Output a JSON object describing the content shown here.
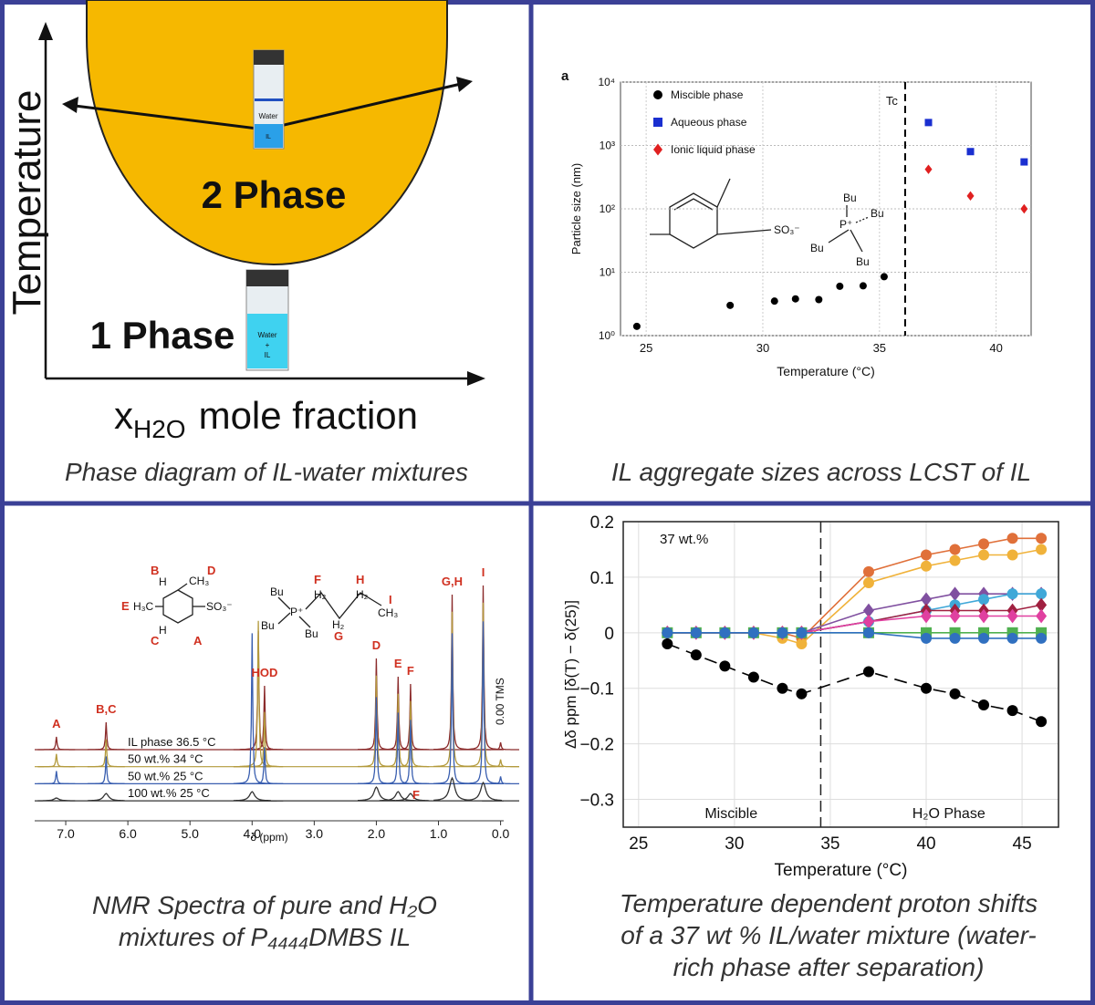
{
  "phase_diagram": {
    "y_label": "Temperature",
    "x_label": {
      "symbol": "x",
      "subscript": "H2O",
      "text": "mole fraction"
    },
    "regions": [
      "2 Phase",
      "1 Phase"
    ],
    "vial_labels": [
      "Water",
      "IL",
      "Water",
      "+",
      "IL"
    ],
    "caption": [
      "Phase diagram of IL-water mixtures"
    ]
  },
  "chart_data": [
    {
      "type": "scatter",
      "panel_label": "a",
      "x_label": "Temperature (°C)",
      "y_label": "Particle size (nm)",
      "log_y": true,
      "grid": true,
      "xlim": [
        23.9,
        41.5
      ],
      "xticks": [
        25,
        30,
        35,
        40
      ],
      "ylim": [
        1,
        10000
      ],
      "yticks": [
        {
          "value": 1,
          "label": "10⁰"
        },
        {
          "value": 10,
          "label": "10¹"
        },
        {
          "value": 100,
          "label": "10²"
        },
        {
          "value": 1000,
          "label": "10³"
        },
        {
          "value": 10000,
          "label": "10⁴"
        }
      ],
      "vline": 36.1,
      "vline_label": "Tc",
      "structure_labels": [
        "SO₃⁻",
        "Bu",
        "Bu",
        "P⁺",
        "Bu",
        "Bu"
      ],
      "series": [
        {
          "name": "Miscible phase",
          "color": "#000000",
          "marker": "circle",
          "x": [
            24.6,
            28.6,
            30.5,
            31.4,
            32.4,
            33.3,
            34.3,
            35.2
          ],
          "values": [
            1.4,
            3.0,
            3.5,
            3.8,
            3.7,
            6.0,
            6.1,
            8.5
          ]
        },
        {
          "name": "Aqueous phase",
          "color": "#1a2fd0",
          "marker": "square",
          "x": [
            37.1,
            38.9,
            41.2
          ],
          "values": [
            2300,
            800,
            550
          ]
        },
        {
          "name": "Ionic liquid phase",
          "color": "#e02020",
          "marker": "diamond",
          "x": [
            37.1,
            38.9,
            41.2
          ],
          "values": [
            420,
            160,
            100
          ]
        }
      ],
      "caption": [
        "IL aggregate sizes across LCST of IL"
      ]
    },
    {
      "type": "spectrum",
      "x_label": "δ (ppm)",
      "xlim": [
        7.5,
        -0.05
      ],
      "xticks": [
        {
          "value": 7,
          "label": "7.0"
        },
        {
          "value": 6,
          "label": "6.0"
        },
        {
          "value": 5,
          "label": "5.0"
        },
        {
          "value": 4,
          "label": "4.0"
        },
        {
          "value": 3,
          "label": "3.0"
        },
        {
          "value": 2,
          "label": "2.0"
        },
        {
          "value": 1,
          "label": "1.0"
        },
        {
          "value": 0,
          "label": "0.0"
        }
      ],
      "x": [
        7.15,
        6.35,
        4.0,
        3.9,
        3.8,
        2.0,
        1.65,
        1.45,
        0.78,
        0.28,
        0.0
      ],
      "peak_labels": [
        "A",
        "B,C",
        null,
        null,
        "HOD",
        "D",
        "E",
        "F",
        "G,H",
        "I",
        null
      ],
      "annotations": [
        "F",
        "0.00 TMS"
      ],
      "structure_labels": [
        "B",
        "H",
        "CH₃",
        "D",
        "E",
        "H₃C",
        "SO₃⁻",
        "H",
        "C",
        "A",
        "Bu",
        "P⁺",
        "Bu",
        "Bu",
        "F",
        "H₂",
        "H",
        "H₂",
        "I",
        "CH₃",
        "H₂",
        "G"
      ],
      "series": [
        {
          "name": "IL phase 36.5 °C",
          "color": "#8b2b2b",
          "values": [
            14,
            30,
            0,
            130,
            70,
            100,
            80,
            72,
            170,
            180,
            8
          ]
        },
        {
          "name": "50 wt.% 34 °C",
          "color": "#b39a3c",
          "values": [
            14,
            30,
            0,
            160,
            60,
            100,
            80,
            72,
            170,
            180,
            8
          ]
        },
        {
          "name": "50 wt.% 25 °C",
          "color": "#3a5fb0",
          "values": [
            14,
            30,
            165,
            0,
            40,
            95,
            78,
            70,
            165,
            178,
            8
          ]
        },
        {
          "name": "100 wt.% 25 °C",
          "color": "#333333",
          "values": [
            3,
            8,
            10,
            0,
            0,
            15,
            10,
            8,
            25,
            20,
            0
          ]
        }
      ],
      "caption": [
        "NMR Spectra of pure and H₂O",
        "mixtures of P₄₄₄₄DMBS IL"
      ]
    },
    {
      "type": "line",
      "x_label": "Temperature (°C)",
      "y_label": "Δδ ppm [δ(T) − δ(25)]",
      "grid": true,
      "xlim": [
        24.2,
        46.9
      ],
      "xticks": [
        25,
        30,
        35,
        40,
        45
      ],
      "ylim": [
        -0.35,
        0.2
      ],
      "yticks": [
        0.2,
        0.1,
        0,
        {
          "value": -0.1,
          "label": "−0.1"
        },
        {
          "value": -0.2,
          "label": "−0.2"
        },
        {
          "value": -0.3,
          "label": "−0.3"
        }
      ],
      "vline": 34.5,
      "annotations": [
        "37 wt.%",
        "Miscible",
        "H₂O Phase"
      ],
      "x": [
        26.5,
        28,
        29.5,
        31,
        32.5,
        33.5,
        37,
        40,
        41.5,
        43,
        44.5,
        46
      ],
      "series": [
        {
          "color": "#e0703a",
          "marker": "circle",
          "values": [
            0,
            0,
            0,
            0,
            0,
            -0.01,
            0.11,
            0.14,
            0.15,
            0.16,
            0.17,
            0.17
          ]
        },
        {
          "color": "#f0b23a",
          "marker": "circle",
          "values": [
            0,
            0,
            0,
            0,
            -0.01,
            -0.02,
            0.09,
            0.12,
            0.13,
            0.14,
            0.14,
            0.15
          ]
        },
        {
          "color": "#8050a0",
          "marker": "diamond",
          "values": [
            0,
            0,
            0,
            0,
            0,
            0,
            0.04,
            0.06,
            0.07,
            0.07,
            0.07,
            0.07
          ]
        },
        {
          "color": "#40a8d8",
          "marker": "circle",
          "values": [
            0,
            0,
            0,
            0,
            0,
            0,
            0.02,
            0.04,
            0.05,
            0.06,
            0.07,
            0.07
          ]
        },
        {
          "color": "#a02040",
          "marker": "diamond",
          "values": [
            0,
            0,
            0,
            0,
            0,
            0,
            0.02,
            0.04,
            0.04,
            0.04,
            0.04,
            0.05
          ]
        },
        {
          "color": "#e040a0",
          "marker": "diamond",
          "values": [
            0,
            0,
            0,
            0,
            0,
            0,
            0.02,
            0.03,
            0.03,
            0.03,
            0.03,
            0.03
          ]
        },
        {
          "color": "#50b050",
          "marker": "square",
          "values": [
            0,
            0,
            0,
            0,
            0,
            0,
            0,
            0,
            0,
            0,
            0,
            0
          ]
        },
        {
          "color": "#3070c0",
          "marker": "circle",
          "values": [
            0,
            0,
            0,
            0,
            0,
            0,
            0,
            -0.01,
            -0.01,
            -0.01,
            -0.01,
            -0.01
          ]
        },
        {
          "color": "#000000",
          "marker": "circle",
          "dash": true,
          "values": [
            -0.02,
            -0.04,
            -0.06,
            -0.08,
            -0.1,
            -0.11,
            -0.07,
            -0.1,
            -0.11,
            -0.13,
            -0.14,
            -0.16
          ]
        }
      ],
      "caption": [
        "Temperature dependent proton shifts",
        "of a 37 wt % IL/water mixture (water-",
        "rich phase after separation)"
      ]
    }
  ]
}
